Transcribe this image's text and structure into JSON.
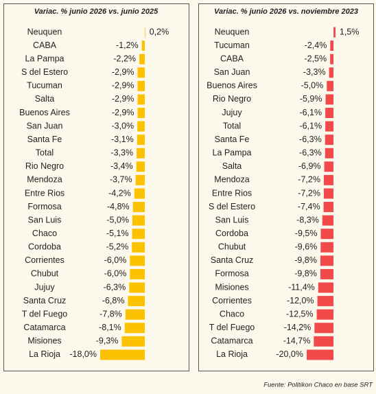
{
  "chart_data": [
    {
      "type": "bar",
      "title": "Variac. % junio 2026 vs. junio 2025",
      "color": "#fcc200",
      "categories": [
        "Neuquen",
        "CABA",
        "La Pampa",
        "S del Estero",
        "Tucuman",
        "Salta",
        "Buenos Aires",
        "San Juan",
        "Santa Fe",
        "Total",
        "Rio Negro",
        "Mendoza",
        "Entre Rios",
        "Formosa",
        "San Luis",
        "Chaco",
        "Cordoba",
        "Corrientes",
        "Chubut",
        "Jujuy",
        "Santa Cruz",
        "T del Fuego",
        "Catamarca",
        "Misiones",
        "La Rioja"
      ],
      "values": [
        0.2,
        -1.2,
        -2.2,
        -2.9,
        -2.9,
        -2.9,
        -2.9,
        -3.0,
        -3.1,
        -3.3,
        -3.4,
        -3.7,
        -4.2,
        -4.8,
        -5.0,
        -5.1,
        -5.2,
        -6.0,
        -6.0,
        -6.3,
        -6.8,
        -7.8,
        -8.1,
        -9.3,
        -18.0
      ],
      "value_labels": [
        "0,2%",
        "-1,2%",
        "-2,2%",
        "-2,9%",
        "-2,9%",
        "-2,9%",
        "-2,9%",
        "-3,0%",
        "-3,1%",
        "-3,3%",
        "-3,4%",
        "-3,7%",
        "-4,2%",
        "-4,8%",
        "-5,0%",
        "-5,1%",
        "-5,2%",
        "-6,0%",
        "-6,0%",
        "-6,3%",
        "-6,8%",
        "-7,8%",
        "-8,1%",
        "-9,3%",
        "-18,0%"
      ]
    },
    {
      "type": "bar",
      "title": "Variac. % junio 2026 vs. noviembre 2023",
      "color": "#f24a4a",
      "categories": [
        "Neuquen",
        "Tucuman",
        "CABA",
        "San Juan",
        "Buenos Aires",
        "Rio Negro",
        "Jujuy",
        "Total",
        "Santa Fe",
        "La Pampa",
        "Salta",
        "Mendoza",
        "Entre Rios",
        "S del Estero",
        "San Luis",
        "Cordoba",
        "Chubut",
        "Santa Cruz",
        "Formosa",
        "Misiones",
        "Corrientes",
        "Chaco",
        "T del Fuego",
        "Catamarca",
        "La Rioja"
      ],
      "values": [
        1.5,
        -2.4,
        -2.5,
        -3.3,
        -5.0,
        -5.9,
        -6.1,
        -6.1,
        -6.3,
        -6.3,
        -6.9,
        -7.2,
        -7.2,
        -7.4,
        -8.3,
        -9.5,
        -9.6,
        -9.8,
        -9.8,
        -11.4,
        -12.0,
        -12.5,
        -14.2,
        -14.7,
        -20.0
      ],
      "value_labels": [
        "1,5%",
        "-2,4%",
        "-2,5%",
        "-3,3%",
        "-5,0%",
        "-5,9%",
        "-6,1%",
        "-6,1%",
        "-6,3%",
        "-6,3%",
        "-6,9%",
        "-7,2%",
        "-7,2%",
        "-7,4%",
        "-8,3%",
        "-9,5%",
        "-9,6%",
        "-9,8%",
        "-9,8%",
        "-11,4%",
        "-12,0%",
        "-12,5%",
        "-14,2%",
        "-14,7%",
        "-20,0%"
      ]
    }
  ],
  "source": "Fuente: Politikon Chaco en base SRT"
}
